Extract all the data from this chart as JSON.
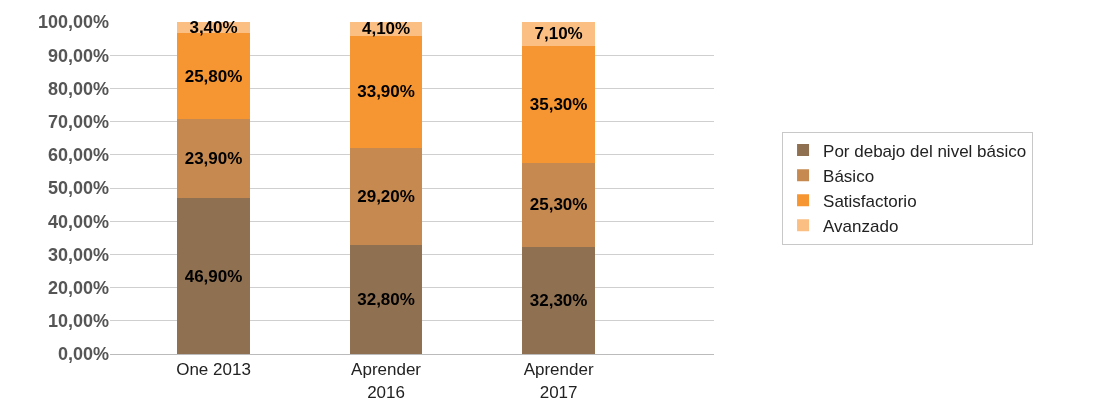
{
  "chart_data": {
    "type": "bar",
    "stacked": true,
    "categories": [
      "One 2013",
      "Aprender 2016",
      "Aprender 2017"
    ],
    "series": [
      {
        "name": "Por debajo del nivel básico",
        "color": "#8f7050",
        "values": [
          46.9,
          32.8,
          32.3
        ],
        "value_labels": [
          "46,90%",
          "32,80%",
          "32,30%"
        ]
      },
      {
        "name": "Básico",
        "color": "#c68a50",
        "values": [
          23.9,
          29.2,
          25.3
        ],
        "value_labels": [
          "23,90%",
          "29,20%",
          "25,30%"
        ]
      },
      {
        "name": "Satisfactorio",
        "color": "#f59632",
        "values": [
          25.8,
          33.9,
          35.3
        ],
        "value_labels": [
          "25,80%",
          "33,90%",
          "35,30%"
        ]
      },
      {
        "name": "Avanzado",
        "color": "#fbbf84",
        "values": [
          3.4,
          4.1,
          7.1
        ],
        "value_labels": [
          "3,40%",
          "4,10%",
          "7,10%"
        ]
      }
    ],
    "ylim": [
      0,
      100
    ],
    "yticks": [
      {
        "value": 0,
        "label": "0,00%"
      },
      {
        "value": 10,
        "label": "10,00%"
      },
      {
        "value": 20,
        "label": "20,00%"
      },
      {
        "value": 30,
        "label": "30,00%"
      },
      {
        "value": 40,
        "label": "40,00%"
      },
      {
        "value": 50,
        "label": "50,00%"
      },
      {
        "value": 60,
        "label": "60,00%"
      },
      {
        "value": 70,
        "label": "70,00%"
      },
      {
        "value": 80,
        "label": "80,00%"
      },
      {
        "value": 90,
        "label": "90,00%"
      },
      {
        "value": 100,
        "label": "100,00%"
      }
    ],
    "grid": "y",
    "legend": "right"
  }
}
